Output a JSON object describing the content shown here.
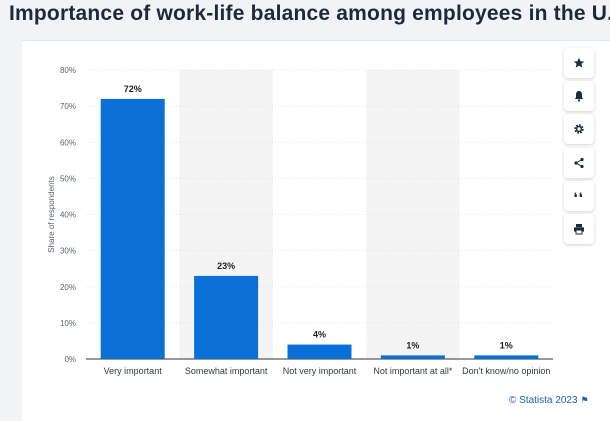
{
  "page": {
    "title": "Importance of work-life balance among employees in the U.S.",
    "credit": "© Statista 2023"
  },
  "toolbar": {
    "buttons": [
      {
        "name": "star-icon",
        "glyph": "★"
      },
      {
        "name": "bell-icon",
        "glyph": "bell"
      },
      {
        "name": "gear-icon",
        "glyph": "gear"
      },
      {
        "name": "share-icon",
        "glyph": "share"
      },
      {
        "name": "quote-icon",
        "glyph": "❝"
      },
      {
        "name": "print-icon",
        "glyph": "print"
      }
    ]
  },
  "colors": {
    "bar": "#0b6fd8",
    "stripe": "#f4f4f4",
    "axis": "#333333",
    "grid": "#d9dde3"
  },
  "chart_data": {
    "type": "bar",
    "title": "",
    "xlabel": "",
    "ylabel": "Share of respondents",
    "categories": [
      "Very important",
      "Somewhat important",
      "Not very important",
      "Not important at all*",
      "Don't know/no opinion"
    ],
    "values": [
      72,
      23,
      4,
      1,
      1
    ],
    "value_labels": [
      "72%",
      "23%",
      "4%",
      "1%",
      "1%"
    ],
    "ylim": [
      0,
      80
    ],
    "yticks": [
      0,
      10,
      20,
      30,
      40,
      50,
      60,
      70,
      80
    ],
    "ytick_labels": [
      "0%",
      "10%",
      "20%",
      "30%",
      "40%",
      "50%",
      "60%",
      "70%",
      "80%"
    ],
    "grid": true,
    "alternating_band_columns": true
  }
}
